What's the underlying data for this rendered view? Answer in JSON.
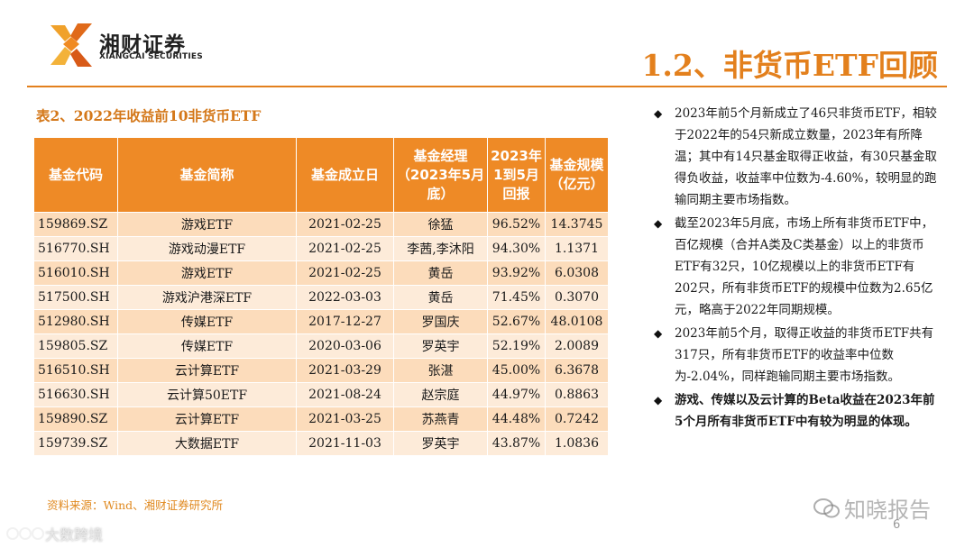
{
  "header": {
    "logo_cn": "湘财证券",
    "logo_en": "XIANGCAI SECURITIES",
    "page_title": "1.2、非货币ETF回顾"
  },
  "colors": {
    "accent": "#e3801d",
    "header_bg": "#ee8a26",
    "row_light": "#fdebd9",
    "row_dark": "#fcdcbb"
  },
  "table": {
    "caption": "表2、2022年收益前10非货币ETF",
    "headers": [
      "基金代码",
      "基金简称",
      "基金成立日",
      "基金经理（2023年5月底）",
      "2023年1到5月回报",
      "基金规模（亿元）"
    ],
    "rows": [
      [
        "159869.SZ",
        "游戏ETF",
        "2021-02-25",
        "徐猛",
        "96.52%",
        "14.3745"
      ],
      [
        "516770.SH",
        "游戏动漫ETF",
        "2021-02-25",
        "李茜,李沐阳",
        "94.30%",
        "1.1371"
      ],
      [
        "516010.SH",
        "游戏ETF",
        "2021-02-25",
        "黄岳",
        "93.92%",
        "6.0308"
      ],
      [
        "517500.SH",
        "游戏沪港深ETF",
        "2022-03-03",
        "黄岳",
        "71.45%",
        "0.3070"
      ],
      [
        "512980.SH",
        "传媒ETF",
        "2017-12-27",
        "罗国庆",
        "52.67%",
        "48.0108"
      ],
      [
        "159805.SZ",
        "传媒ETF",
        "2020-03-06",
        "罗英宇",
        "52.19%",
        "2.0089"
      ],
      [
        "516510.SH",
        "云计算ETF",
        "2021-03-29",
        "张湛",
        "45.00%",
        "6.3678"
      ],
      [
        "516630.SH",
        "云计算50ETF",
        "2021-08-24",
        "赵宗庭",
        "44.97%",
        "0.8863"
      ],
      [
        "159890.SZ",
        "云计算ETF",
        "2021-03-25",
        "苏燕青",
        "44.48%",
        "0.7242"
      ],
      [
        "159739.SZ",
        "大数据ETF",
        "2021-11-03",
        "罗英宇",
        "43.87%",
        "1.0836"
      ]
    ]
  },
  "source": "资料来源：Wind、湘财证券研究所",
  "bullets": [
    "2023年前5个月新成立了46只非货币ETF，相较于2022年的54只新成立数量，2023年有所降温；其中有14只基金取得正收益，有30只基金取得负收益，收益率中位数为-4.60%，较明显的跑输同期主要市场指数。",
    "截至2023年5月底，市场上所有非货币ETF中，百亿规模（合并A类及C类基金）以上的非货币ETF有32只，10亿规模以上的非货币ETF有202只，所有非货币ETF的规模中位数为2.65亿元，略高于2022年同期规模。",
    "2023年前5个月，取得正收益的非货币ETF共有317只，所有非货币ETF的收益率中位数为-2.04%，同样跑输同期主要市场指数。",
    "游戏、传媒以及云计算的Beta收益在2023年前5个月所有非货币ETF中有较为明显的体现。"
  ],
  "page_number": "6",
  "watermarks": {
    "right": "知晓报告",
    "left": "大数跨境"
  }
}
